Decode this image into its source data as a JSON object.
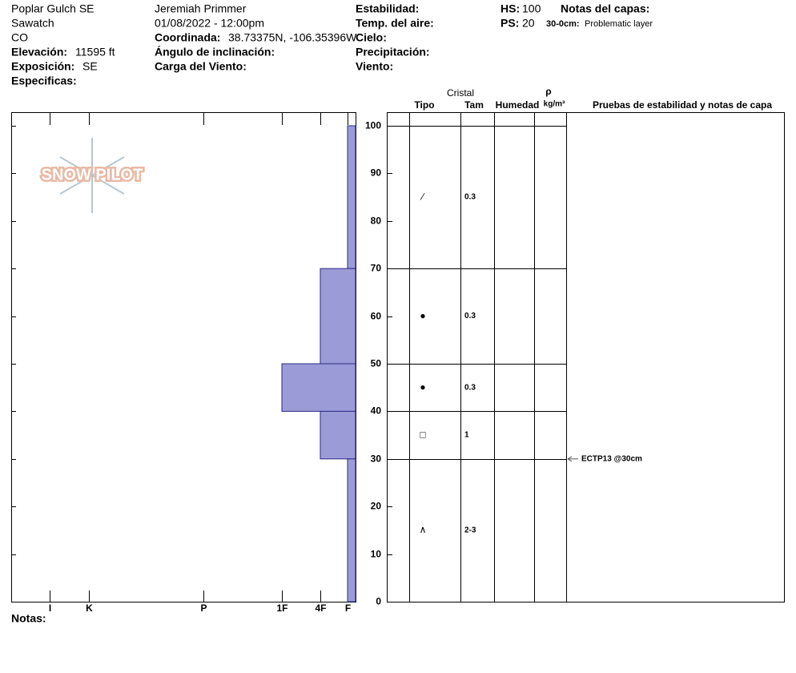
{
  "site": {
    "name": "Poplar Gulch SE",
    "range": "Sawatch",
    "state": "CO",
    "elevation_label": "Elevación:",
    "elevation": "11595 ft",
    "aspect_label": "Exposición:",
    "aspect": "SE",
    "specifics_label": "Especificas:"
  },
  "observation": {
    "observer": "Jeremiah Primmer",
    "datetime": "01/08/2022 - 12:00pm",
    "coords_label": "Coordinada:",
    "coords": "38.73375N, -106.35396W",
    "slope_label": "Ángulo de inclinación:",
    "wind_load_label": "Carga del Viento:"
  },
  "conditions": {
    "stability_label": "Estabilidad:",
    "air_temp_label": "Temp. del aire:",
    "sky_label": "Cielo:",
    "precip_label": "Precipitación:",
    "wind_label": "Viento:"
  },
  "depths": {
    "hs_label": "HS:",
    "hs": 100,
    "ps_label": "PS:",
    "ps": 20
  },
  "layer_notes": {
    "title": "Notas del capas:",
    "range": "30-0cm:",
    "text": "Problematic layer"
  },
  "notes_label": "Notas:",
  "logo": "SNOW PILOT",
  "chart_data": {
    "type": "snow-profile",
    "ylim": [
      0,
      100
    ],
    "yticks": [
      0,
      10,
      20,
      30,
      40,
      50,
      60,
      70,
      80,
      90,
      100
    ],
    "xlim": [
      0,
      430
    ],
    "xticks": [
      {
        "value": 382,
        "label": "I"
      },
      {
        "value": 333,
        "label": "K"
      },
      {
        "value": 190,
        "label": "P"
      },
      {
        "value": 92,
        "label": "1F"
      },
      {
        "value": 44,
        "label": "4F"
      },
      {
        "value": 10,
        "label": "F"
      }
    ],
    "color": "#9b9bd7",
    "columns": {
      "crystal": "Cristal",
      "type": "Tipo",
      "size": "Tam",
      "moisture": "Humedad",
      "density": "ρ",
      "density_unit": "kg/m³",
      "tests": "Pruebas de estabilidad y notas de capa"
    },
    "layers": [
      {
        "top": 100,
        "bottom": 70,
        "hardness": 10,
        "grain": "⁄",
        "size": "0.3"
      },
      {
        "top": 70,
        "bottom": 50,
        "hardness": 44,
        "grain": "●",
        "size": "0.3"
      },
      {
        "top": 50,
        "bottom": 40,
        "hardness": 92,
        "grain": "●",
        "size": "0.3"
      },
      {
        "top": 40,
        "bottom": 30,
        "hardness": 44,
        "grain": "□",
        "size": "1"
      },
      {
        "top": 30,
        "bottom": 0,
        "hardness": 10,
        "grain": "∧",
        "size": "2-3"
      }
    ],
    "tests": [
      {
        "depth": 30,
        "label": "ECTP13 @30cm"
      }
    ]
  }
}
